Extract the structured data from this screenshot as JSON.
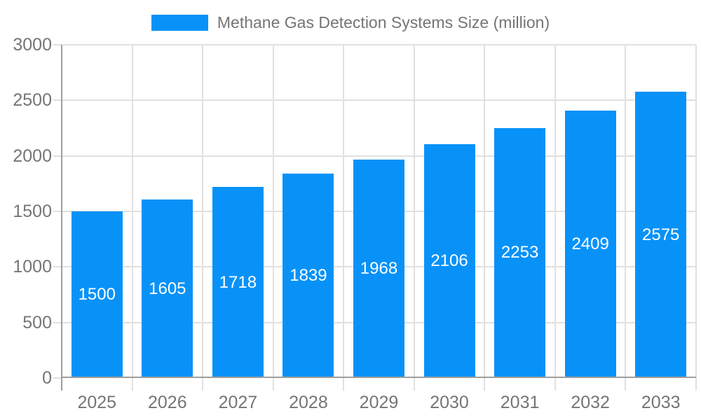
{
  "chart_data": {
    "type": "bar",
    "title": "Methane Gas Detection Systems Size (million)",
    "legend": {
      "label": "Methane Gas Detection Systems Size (million)",
      "position": "top"
    },
    "categories": [
      "2025",
      "2026",
      "2027",
      "2028",
      "2029",
      "2030",
      "2031",
      "2032",
      "2033"
    ],
    "values": [
      1500,
      1605,
      1718,
      1839,
      1968,
      2106,
      2253,
      2409,
      2575
    ],
    "value_labels": [
      "1500",
      "1605",
      "1718",
      "1839",
      "1968",
      "2106",
      "2253",
      "2409",
      "2575"
    ],
    "xlabel": "",
    "ylabel": "",
    "ylim": [
      0,
      3000
    ],
    "yticks": [
      0,
      500,
      1000,
      1500,
      2000,
      2500,
      3000
    ],
    "grid": true
  },
  "style": {
    "bar_color": "#0892f8",
    "grid_color": "#e0e0e0",
    "axis_color": "#9e9e9e",
    "label_color": "#757575",
    "bar_value_color": "#ffffff",
    "background": "#ffffff"
  }
}
